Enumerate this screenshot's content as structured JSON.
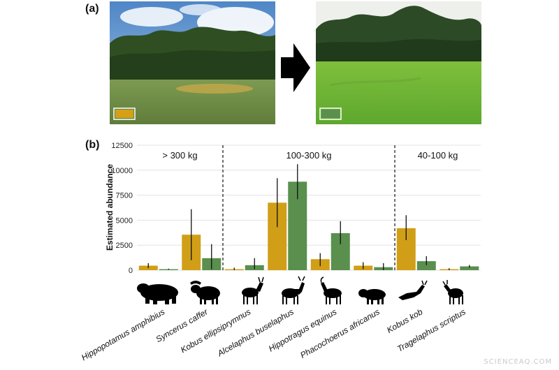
{
  "panel_a": {
    "label": "(a)",
    "photo_before": {
      "swatch_color": "#d4a017"
    },
    "photo_after": {
      "swatch_color": "#5a8f4e"
    }
  },
  "panel_b": {
    "label": "(b)"
  },
  "watermark": "SCIENCEAQ.COM",
  "colors": {
    "before": "#d19f17",
    "after": "#5a8f4e"
  },
  "chart_data": {
    "type": "bar",
    "ylabel": "Estimated abundance",
    "xlabel": "",
    "ylim": [
      0,
      12500
    ],
    "yticks": [
      0,
      2500,
      5000,
      7500,
      10000,
      12500
    ],
    "grid": true,
    "legend": "none",
    "groups": [
      {
        "label": "> 300 kg",
        "categories": [
          0,
          1
        ]
      },
      {
        "label": "100-300 kg",
        "categories": [
          2,
          3,
          4,
          5
        ]
      },
      {
        "label": "40-100 kg",
        "categories": [
          6,
          7
        ]
      }
    ],
    "categories": [
      "Hippopotamus amphibius",
      "Syncerus caffer",
      "Kobus ellipsiprymnus",
      "Alcelaphus buselaphus",
      "Hippotragus equinus",
      "Phacochoerus africanus",
      "Kobus kob",
      "Tragelaphus scriptus"
    ],
    "series": [
      {
        "color": "#d19f17",
        "values": [
          450,
          3550,
          100,
          6750,
          1100,
          450,
          4200,
          100
        ],
        "error_low": [
          200,
          1000,
          0,
          4300,
          400,
          100,
          3000,
          0
        ],
        "error_high": [
          700,
          6100,
          250,
          9200,
          1700,
          800,
          5500,
          200
        ]
      },
      {
        "color": "#5a8f4e",
        "values": [
          100,
          1200,
          500,
          8850,
          3700,
          300,
          900,
          380
        ],
        "error_low": [
          50,
          100,
          100,
          7100,
          2600,
          0,
          500,
          250
        ],
        "error_high": [
          150,
          2600,
          1200,
          10600,
          4900,
          700,
          1400,
          520
        ]
      }
    ]
  }
}
